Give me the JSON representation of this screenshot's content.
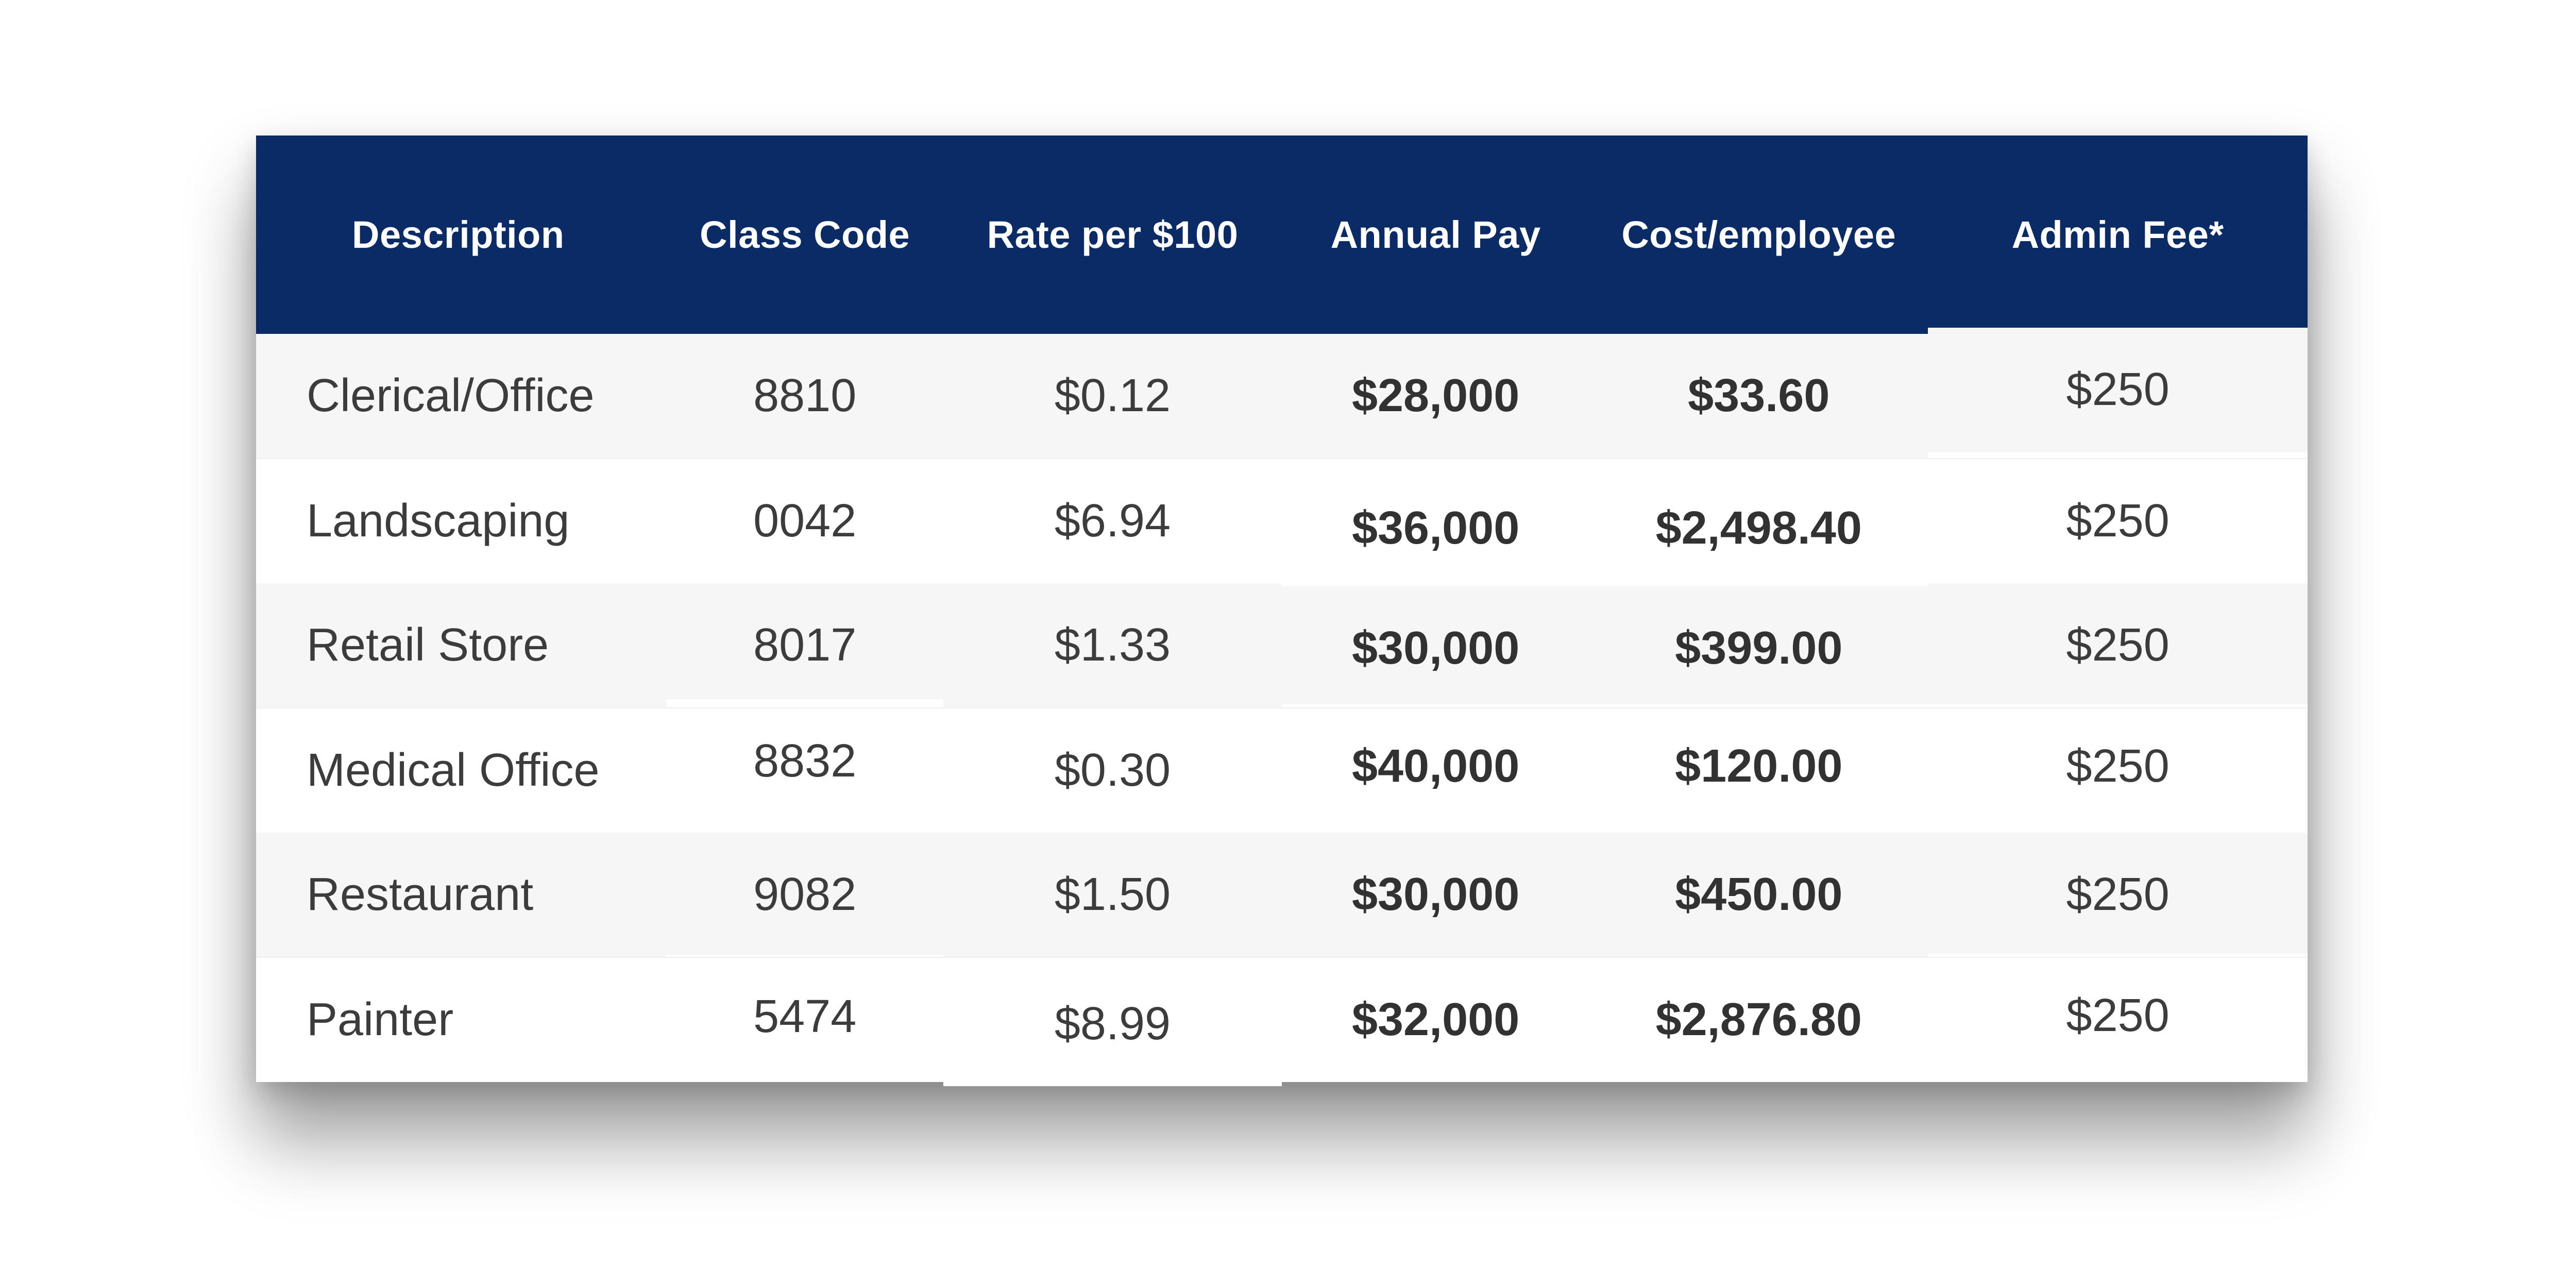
{
  "table": {
    "columns": [
      "Description",
      "Class Code",
      "Rate per $100",
      "Annual Pay",
      "Cost/employee",
      "Admin Fee*"
    ],
    "rows": [
      [
        "Clerical/Office",
        "8810",
        "$0.12",
        "$28,000",
        "$33.60",
        "$250"
      ],
      [
        "Landscaping",
        "0042",
        "$6.94",
        "$36,000",
        "$2,498.40",
        "$250"
      ],
      [
        "Retail Store",
        "8017",
        "$1.33",
        "$30,000",
        "$399.00",
        "$250"
      ],
      [
        "Medical Office",
        "8832",
        "$0.30",
        "$40,000",
        "$120.00",
        "$250"
      ],
      [
        "Restaurant",
        "9082",
        "$1.50",
        "$30,000",
        "$450.00",
        "$250"
      ],
      [
        "Painter",
        "5474",
        "$8.99",
        "$32,000",
        "$2,876.80",
        "$250"
      ]
    ]
  },
  "colors": {
    "header_bg": "#0a2b66",
    "header_text": "#ffffff",
    "row_stripe": "#f6f6f6",
    "row_plain": "#ffffff",
    "row_divider": "#efefef",
    "body_text": "#3c3c3c",
    "bold_text": "#323232",
    "page_bg": "#ffffff"
  },
  "chart_data": {
    "type": "table",
    "title": "",
    "columns": [
      "Description",
      "Class Code",
      "Rate per $100",
      "Annual Pay",
      "Cost/employee",
      "Admin Fee*"
    ],
    "rows": [
      [
        "Clerical/Office",
        "8810",
        "$0.12",
        "$28,000",
        "$33.60",
        "$250"
      ],
      [
        "Landscaping",
        "0042",
        "$6.94",
        "$36,000",
        "$2,498.40",
        "$250"
      ],
      [
        "Retail Store",
        "8017",
        "$1.33",
        "$30,000",
        "$399.00",
        "$250"
      ],
      [
        "Medical Office",
        "8832",
        "$0.30",
        "$40,000",
        "$120.00",
        "$250"
      ],
      [
        "Restaurant",
        "9082",
        "$1.50",
        "$30,000",
        "$450.00",
        "$250"
      ],
      [
        "Painter",
        "5474",
        "$8.99",
        "$32,000",
        "$2,876.80",
        "$250"
      ]
    ],
    "notes": "Annual Pay and Cost/employee columns rendered bold; header row navy with white text; zebra striping on rows 1,3,5"
  }
}
